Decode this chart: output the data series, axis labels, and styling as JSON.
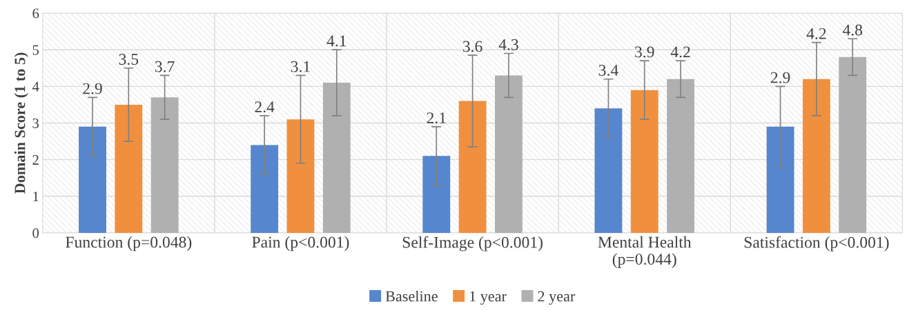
{
  "chart_data": {
    "type": "bar",
    "ylabel": "Domain Score (1 to 5)",
    "categories": [
      "Function (p=0.048)",
      "Pain (p<0.001)",
      "Self-Image (p<0.001)",
      "Mental Health\n(p=0.044)",
      "Satisfaction (p<0.001)"
    ],
    "series": [
      {
        "name": "Baseline",
        "color": "#5586ce",
        "values": [
          2.9,
          2.4,
          2.1,
          3.4,
          2.9
        ],
        "errors": [
          0.8,
          0.8,
          0.8,
          0.8,
          1.1
        ]
      },
      {
        "name": "1 year",
        "color": "#f0903e",
        "values": [
          3.5,
          3.1,
          3.6,
          3.9,
          4.2
        ],
        "errors": [
          1.0,
          1.2,
          1.25,
          0.8,
          1.0
        ]
      },
      {
        "name": "2 year",
        "color": "#b0b0b0",
        "values": [
          3.7,
          4.1,
          4.3,
          4.2,
          4.8
        ],
        "errors": [
          0.6,
          0.9,
          0.6,
          0.5,
          0.5
        ]
      }
    ],
    "ylim": [
      0,
      6
    ],
    "yticks": [
      0,
      1,
      2,
      3,
      4,
      5,
      6
    ],
    "grid": true,
    "data_labels": true,
    "legend": "bottom"
  }
}
